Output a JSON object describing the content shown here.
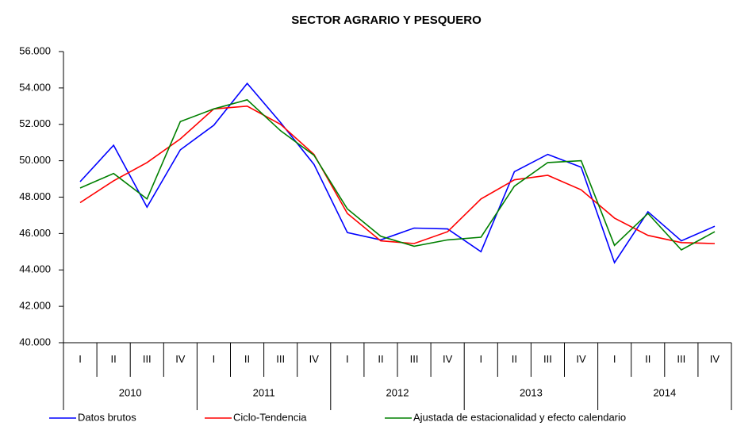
{
  "chart_data": {
    "type": "line",
    "title": "SECTOR AGRARIO Y PESQUERO",
    "categories": [
      "I",
      "II",
      "III",
      "IV",
      "I",
      "II",
      "III",
      "IV",
      "I",
      "II",
      "III",
      "IV",
      "I",
      "II",
      "III",
      "IV",
      "I",
      "II",
      "III",
      "IV"
    ],
    "years": [
      "2010",
      "2011",
      "2012",
      "2013",
      "2014"
    ],
    "ylim": [
      40000,
      56000
    ],
    "yticks": [
      {
        "value": 40000,
        "label": "40.000"
      },
      {
        "value": 42000,
        "label": "42.000"
      },
      {
        "value": 44000,
        "label": "44.000"
      },
      {
        "value": 46000,
        "label": "46.000"
      },
      {
        "value": 48000,
        "label": "48.000"
      },
      {
        "value": 50000,
        "label": "50.000"
      },
      {
        "value": 52000,
        "label": "52.000"
      },
      {
        "value": 54000,
        "label": "54.000"
      },
      {
        "value": 56000,
        "label": "56.000"
      }
    ],
    "grid": false,
    "legend": "bottom",
    "series": [
      {
        "name": "Datos brutos",
        "color": "#0000ff",
        "values": [
          48850,
          50850,
          47450,
          50600,
          51950,
          54250,
          52100,
          49800,
          46050,
          45650,
          46300,
          46250,
          45000,
          49400,
          50350,
          49650,
          44400,
          47200,
          45600,
          46400
        ]
      },
      {
        "name": "Ciclo-Tendencia",
        "color": "#ff0000",
        "values": [
          47700,
          48900,
          49900,
          51200,
          52850,
          53000,
          52000,
          50350,
          47100,
          45600,
          45450,
          46100,
          47900,
          48950,
          49200,
          48400,
          46850,
          45900,
          45500,
          45450
        ]
      },
      {
        "name": "Ajustada de estacionalidad y efecto calendario",
        "color": "#008000",
        "values": [
          48500,
          49300,
          47900,
          52150,
          52850,
          53350,
          51650,
          50300,
          47350,
          45850,
          45300,
          45650,
          45800,
          48600,
          49900,
          50000,
          45350,
          47100,
          45100,
          46100
        ]
      }
    ]
  }
}
